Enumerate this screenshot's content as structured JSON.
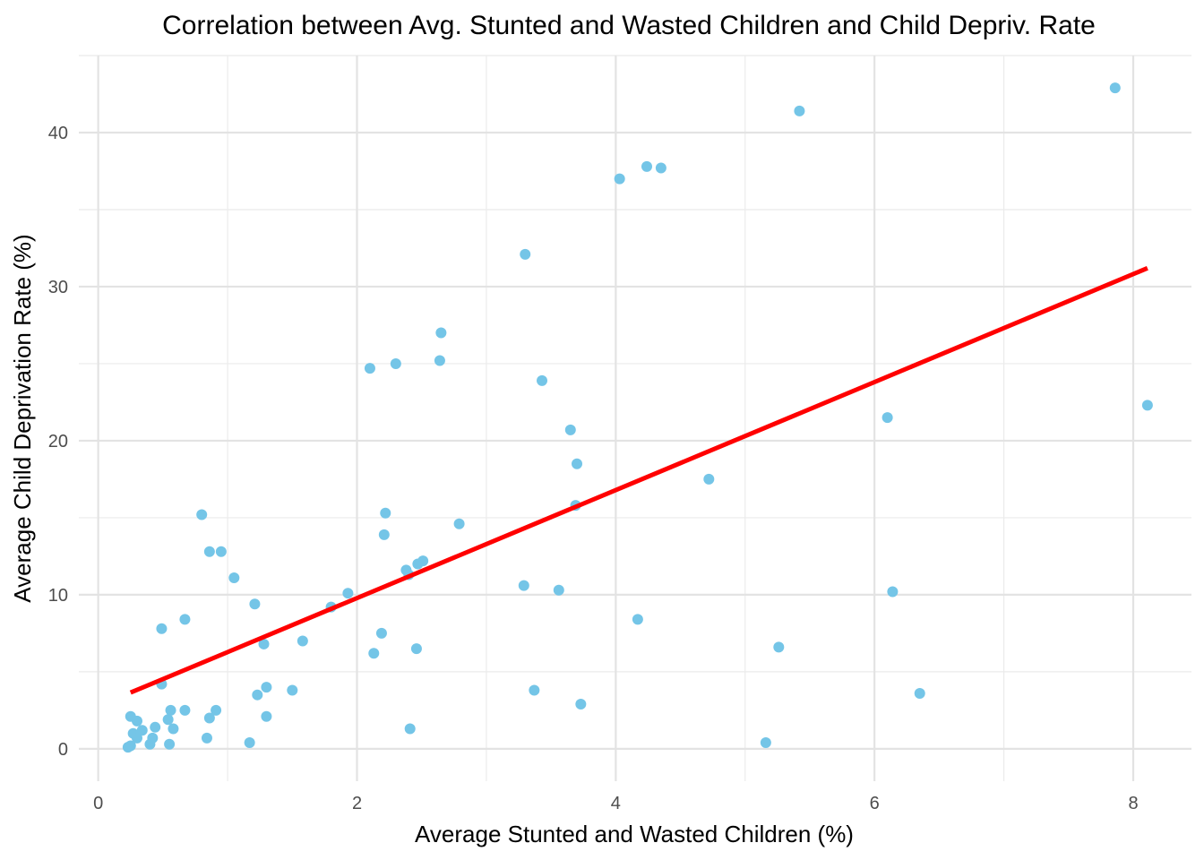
{
  "chart_data": {
    "type": "scatter",
    "title": "Correlation between Avg. Stunted and Wasted Children and Child Depriv. Rate",
    "xlabel": "Average Stunted and Wasted Children (%)",
    "ylabel": "Average Child Deprivation Rate (%)",
    "xlim": [
      -0.15,
      8.45
    ],
    "ylim": [
      -2.1,
      45.0
    ],
    "x_ticks": [
      0,
      2,
      4,
      6,
      8
    ],
    "y_ticks": [
      0,
      10,
      20,
      30,
      40
    ],
    "x_tick_labels": [
      "0",
      "2",
      "4",
      "6",
      "8"
    ],
    "y_tick_labels": [
      "0",
      "10",
      "20",
      "30",
      "40"
    ],
    "grid": true,
    "point_color": "#74C5E7",
    "line_color": "#FF0000",
    "points": [
      {
        "x": 0.23,
        "y": 0.1
      },
      {
        "x": 0.25,
        "y": 0.2
      },
      {
        "x": 0.25,
        "y": 2.1
      },
      {
        "x": 0.27,
        "y": 1.0
      },
      {
        "x": 0.3,
        "y": 1.8
      },
      {
        "x": 0.3,
        "y": 0.7
      },
      {
        "x": 0.34,
        "y": 1.2
      },
      {
        "x": 0.4,
        "y": 0.3
      },
      {
        "x": 0.42,
        "y": 0.7
      },
      {
        "x": 0.44,
        "y": 1.4
      },
      {
        "x": 0.49,
        "y": 7.8
      },
      {
        "x": 0.49,
        "y": 4.2
      },
      {
        "x": 0.54,
        "y": 1.9
      },
      {
        "x": 0.55,
        "y": 0.3
      },
      {
        "x": 0.56,
        "y": 2.5
      },
      {
        "x": 0.58,
        "y": 1.3
      },
      {
        "x": 0.67,
        "y": 2.5
      },
      {
        "x": 0.67,
        "y": 8.4
      },
      {
        "x": 0.8,
        "y": 15.2
      },
      {
        "x": 0.84,
        "y": 0.7
      },
      {
        "x": 0.86,
        "y": 12.8
      },
      {
        "x": 0.86,
        "y": 2.0
      },
      {
        "x": 0.91,
        "y": 2.5
      },
      {
        "x": 0.95,
        "y": 12.8
      },
      {
        "x": 1.05,
        "y": 11.1
      },
      {
        "x": 1.17,
        "y": 0.4
      },
      {
        "x": 1.21,
        "y": 9.4
      },
      {
        "x": 1.23,
        "y": 3.5
      },
      {
        "x": 1.28,
        "y": 6.8
      },
      {
        "x": 1.3,
        "y": 4.0
      },
      {
        "x": 1.3,
        "y": 2.1
      },
      {
        "x": 1.5,
        "y": 3.8
      },
      {
        "x": 1.58,
        "y": 7.0
      },
      {
        "x": 1.8,
        "y": 9.2
      },
      {
        "x": 1.93,
        "y": 10.1
      },
      {
        "x": 2.1,
        "y": 24.7
      },
      {
        "x": 2.13,
        "y": 6.2
      },
      {
        "x": 2.19,
        "y": 7.5
      },
      {
        "x": 2.21,
        "y": 13.9
      },
      {
        "x": 2.22,
        "y": 15.3
      },
      {
        "x": 2.3,
        "y": 25.0
      },
      {
        "x": 2.38,
        "y": 11.6
      },
      {
        "x": 2.4,
        "y": 11.3
      },
      {
        "x": 2.41,
        "y": 1.3
      },
      {
        "x": 2.46,
        "y": 6.5
      },
      {
        "x": 2.47,
        "y": 12.0
      },
      {
        "x": 2.51,
        "y": 12.2
      },
      {
        "x": 2.64,
        "y": 25.2
      },
      {
        "x": 2.65,
        "y": 27.0
      },
      {
        "x": 2.79,
        "y": 14.6
      },
      {
        "x": 3.29,
        "y": 10.6
      },
      {
        "x": 3.3,
        "y": 32.1
      },
      {
        "x": 3.37,
        "y": 3.8
      },
      {
        "x": 3.43,
        "y": 23.9
      },
      {
        "x": 3.56,
        "y": 10.3
      },
      {
        "x": 3.65,
        "y": 20.7
      },
      {
        "x": 3.69,
        "y": 15.8
      },
      {
        "x": 3.7,
        "y": 18.5
      },
      {
        "x": 3.73,
        "y": 2.9
      },
      {
        "x": 4.03,
        "y": 37.0
      },
      {
        "x": 4.17,
        "y": 8.4
      },
      {
        "x": 4.24,
        "y": 37.8
      },
      {
        "x": 4.35,
        "y": 37.7
      },
      {
        "x": 4.72,
        "y": 17.5
      },
      {
        "x": 5.16,
        "y": 0.4
      },
      {
        "x": 5.26,
        "y": 6.6
      },
      {
        "x": 5.42,
        "y": 41.4
      },
      {
        "x": 6.1,
        "y": 21.5
      },
      {
        "x": 6.14,
        "y": 10.2
      },
      {
        "x": 6.35,
        "y": 3.6
      },
      {
        "x": 7.86,
        "y": 42.9
      },
      {
        "x": 8.11,
        "y": 22.3
      }
    ],
    "trend_line": {
      "x": [
        0.25,
        8.11
      ],
      "y": [
        3.65,
        31.2
      ]
    }
  }
}
